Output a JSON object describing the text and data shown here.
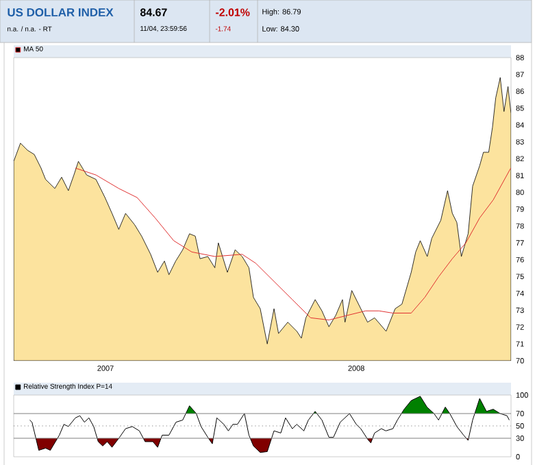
{
  "chart_data": [
    {
      "type": "area",
      "title": "US DOLLAR INDEX",
      "subtitle": "n.a. / n.a. - RT",
      "annotations": [
        "84.67",
        "11/04, 23:59:56",
        "-2.01%",
        "-1.74",
        "High: 86.79",
        "Low: 84.30"
      ],
      "legend": "top left",
      "xlim": [
        2006.634,
        2008.617
      ],
      "xticks": [
        {
          "value": 2007,
          "label": "2007"
        },
        {
          "value": 2008,
          "label": "2008"
        }
      ],
      "ylim": [
        70,
        88
      ],
      "yticks": [
        70,
        71,
        72,
        73,
        74,
        75,
        76,
        77,
        78,
        79,
        80,
        81,
        82,
        83,
        84,
        85,
        86,
        87,
        88
      ],
      "series": [
        {
          "type": "area",
          "color": "#fce39e",
          "x": [
            2006.634,
            2006.661,
            2006.689,
            2006.716,
            2006.743,
            2006.761,
            2006.798,
            2006.825,
            2006.852,
            2006.874,
            2006.892,
            2006.925,
            2006.962,
            2006.998,
            2007.026,
            2007.053,
            2007.08,
            2007.116,
            2007.144,
            2007.18,
            2007.208,
            2007.235,
            2007.253,
            2007.28,
            2007.308,
            2007.335,
            2007.358,
            2007.377,
            2007.408,
            2007.436,
            2007.45,
            2007.486,
            2007.517,
            2007.545,
            2007.572,
            2007.59,
            2007.617,
            2007.645,
            2007.672,
            2007.69,
            2007.727,
            2007.763,
            2007.781,
            2007.799,
            2007.836,
            2007.863,
            2007.891,
            2007.918,
            2007.945,
            2007.955,
            2007.982,
            2008.018,
            2008.045,
            2008.073,
            2008.119,
            2008.155,
            2008.182,
            2008.219,
            2008.237,
            2008.255,
            2008.283,
            2008.301,
            2008.337,
            2008.364,
            2008.383,
            2008.401,
            2008.419,
            2008.446,
            2008.464,
            2008.492,
            2008.507,
            2008.528,
            2008.543,
            2008.556,
            2008.574,
            2008.589,
            2008.605,
            2008.617
          ],
          "values": [
            81.84,
            82.92,
            82.5,
            82.25,
            81.44,
            80.77,
            80.23,
            80.9,
            80.1,
            81.03,
            81.84,
            81.03,
            80.77,
            79.69,
            78.75,
            77.8,
            78.75,
            78.08,
            77.4,
            76.32,
            75.25,
            75.92,
            75.11,
            75.92,
            76.59,
            77.54,
            77.4,
            76.06,
            76.19,
            75.52,
            77.0,
            75.25,
            76.59,
            76.19,
            75.52,
            73.76,
            73.09,
            71.0,
            73.09,
            71.62,
            72.29,
            71.75,
            71.34,
            72.55,
            73.63,
            72.96,
            72.02,
            72.69,
            73.63,
            72.29,
            74.17,
            73.09,
            72.29,
            72.55,
            71.75,
            73.09,
            73.36,
            75.25,
            76.46,
            77.13,
            76.19,
            77.27,
            78.34,
            80.1,
            78.75,
            78.21,
            76.19,
            77.54,
            80.37,
            81.58,
            82.38,
            82.38,
            83.86,
            85.61,
            86.82,
            84.8,
            86.28,
            84.67
          ]
        },
        {
          "type": "line",
          "name": "MA 50",
          "color": "#e03030",
          "x": [
            2006.88,
            2006.962,
            2007.053,
            2007.126,
            2007.198,
            2007.272,
            2007.344,
            2007.436,
            2007.545,
            2007.599,
            2007.672,
            2007.745,
            2007.818,
            2007.891,
            2007.963,
            2008.037,
            2008.091,
            2008.146,
            2008.219,
            2008.273,
            2008.328,
            2008.383,
            2008.437,
            2008.492,
            2008.546,
            2008.616
          ],
          "values": [
            81.44,
            81.03,
            80.23,
            79.69,
            78.48,
            77.13,
            76.46,
            76.19,
            76.32,
            75.79,
            74.71,
            73.63,
            72.55,
            72.42,
            72.69,
            72.96,
            72.96,
            72.83,
            72.83,
            73.76,
            74.98,
            76.06,
            77.0,
            78.48,
            79.55,
            81.44
          ]
        }
      ]
    },
    {
      "type": "line",
      "legend": "top left",
      "tick_labels": "y",
      "xlim": [
        2006.634,
        2008.617
      ],
      "ylim": [
        0,
        100
      ],
      "yticks": [
        0,
        30,
        50,
        70,
        100
      ],
      "ref_lines": [
        {
          "axis": "y",
          "value": 70,
          "color": "#808080",
          "line_style": "solid"
        },
        {
          "axis": "y",
          "value": 50,
          "color": "#808080",
          "line_style": "dotted"
        },
        {
          "axis": "y",
          "value": 30,
          "color": "#808080",
          "line_style": "solid"
        }
      ],
      "series": [
        {
          "name": "Relative Strength Index P=14",
          "color": "#000000",
          "x": [
            2006.698,
            2006.707,
            2006.734,
            2006.761,
            2006.78,
            2006.816,
            2006.834,
            2006.852,
            2006.88,
            2006.898,
            2006.916,
            2006.934,
            2006.953,
            2006.971,
            2006.989,
            2007.007,
            2007.026,
            2007.056,
            2007.08,
            2007.107,
            2007.135,
            2007.158,
            2007.189,
            2007.208,
            2007.226,
            2007.253,
            2007.281,
            2007.308,
            2007.335,
            2007.362,
            2007.381,
            2007.408,
            2007.426,
            2007.444,
            2007.472,
            2007.49,
            2007.508,
            2007.526,
            2007.554,
            2007.572,
            2007.59,
            2007.617,
            2007.645,
            2007.672,
            2007.699,
            2007.718,
            2007.745,
            2007.763,
            2007.791,
            2007.809,
            2007.836,
            2007.863,
            2007.891,
            2007.909,
            2007.936,
            2007.973,
            2008.0,
            2008.018,
            2008.046,
            2008.058,
            2008.073,
            2008.1,
            2008.118,
            2008.146,
            2008.164,
            2008.191,
            2008.219,
            2008.255,
            2008.282,
            2008.31,
            2008.328,
            2008.355,
            2008.373,
            2008.401,
            2008.428,
            2008.446,
            2008.464,
            2008.492,
            2008.519,
            2008.546,
            2008.574,
            2008.601,
            2008.61
          ],
          "values": [
            59.5,
            56,
            10.5,
            14,
            10.5,
            35,
            52.5,
            49,
            63,
            66.5,
            56,
            63,
            49,
            24.5,
            17.5,
            24.5,
            15.4,
            31.5,
            45.5,
            49,
            42,
            24.5,
            24.5,
            15.4,
            35,
            35,
            56,
            59.5,
            82.6,
            70,
            49,
            31.5,
            21,
            63,
            52.5,
            42,
            52.5,
            52.5,
            70,
            35,
            17.5,
            7,
            8.4,
            42,
            38.5,
            63,
            45.5,
            52.5,
            42,
            59.5,
            73.5,
            59.5,
            31.5,
            31.5,
            56,
            70,
            52.5,
            45.5,
            28,
            22.4,
            38.5,
            45.5,
            42,
            45.5,
            59.5,
            77,
            91,
            98,
            80.5,
            70,
            59.5,
            80.5,
            70,
            49,
            35,
            26.6,
            59.5,
            94.5,
            73.5,
            77,
            70,
            66.5,
            59.5
          ]
        }
      ]
    }
  ]
}
